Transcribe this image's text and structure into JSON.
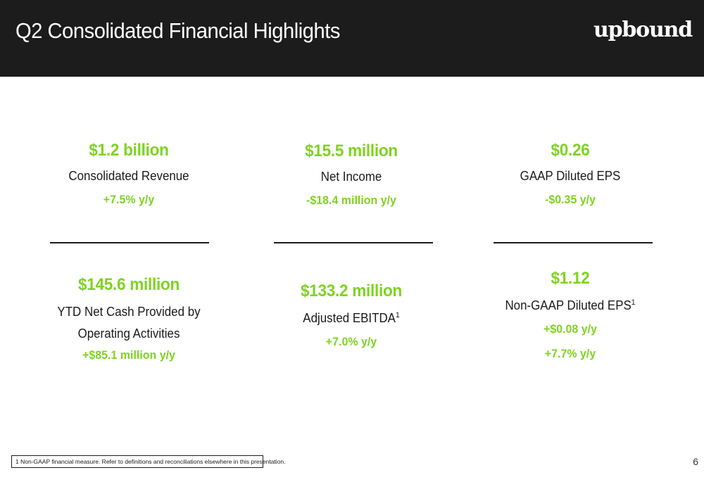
{
  "header": {
    "title": "Q2 Consolidated Financial Highlights",
    "logo_text": "upbound"
  },
  "colors": {
    "accent_green": "#7ed321",
    "header_bg": "#1c1c1c",
    "text_dark": "#1a1a1a"
  },
  "highlights_top": [
    {
      "metric": "$1.2 billion",
      "label": "Consolidated Revenue",
      "change": "+7.5% y/y"
    },
    {
      "metric": "$15.5 million",
      "label": "Net Income",
      "change": "-$18.4 million y/y"
    },
    {
      "metric": "$0.26",
      "label": "GAAP Diluted EPS",
      "change": "-$0.35 y/y"
    }
  ],
  "highlights_bottom": [
    {
      "metric": "$145.6 million",
      "label_line1": "YTD Net Cash Provided by",
      "label_line2": "Operating Activities",
      "change": "+$85.1 million y/y"
    },
    {
      "metric": "$133.2 million",
      "label": "Adjusted EBITDA",
      "footnote_ref": "1",
      "change": "+7.0% y/y"
    },
    {
      "metric": "$1.12",
      "label": "Non-GAAP Diluted EPS",
      "footnote_ref": "1",
      "change": "+$0.08 y/y",
      "change2": "+7.7% y/y"
    }
  ],
  "footnote": "1 Non-GAAP financial measure. Refer to definitions and reconciliations elsewhere in this presentation.",
  "page_number": "6"
}
